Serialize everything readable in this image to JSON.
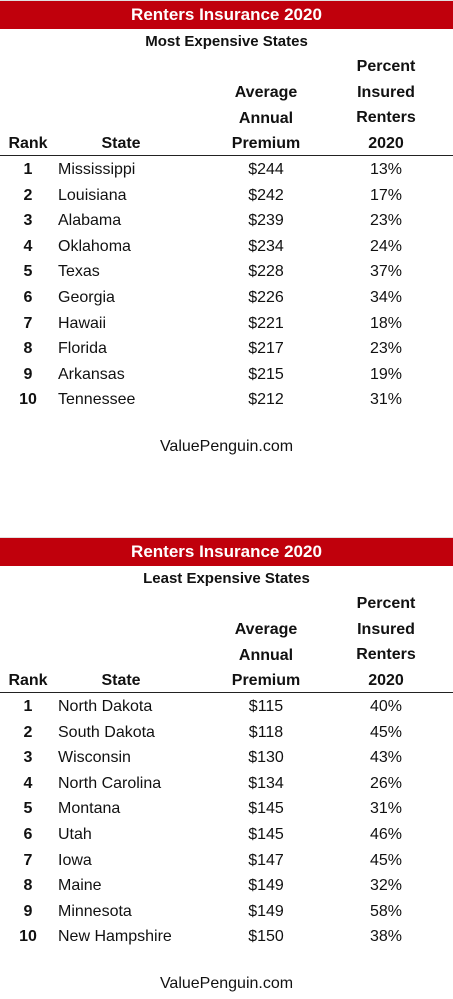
{
  "colors": {
    "banner_bg": "#c0000c",
    "banner_text": "#ffffff"
  },
  "header": {
    "rank": "Rank",
    "state": "State",
    "premium": [
      "Average",
      "Annual",
      "Premium"
    ],
    "percent": [
      "Percent",
      "Insured",
      "Renters",
      "2020"
    ]
  },
  "tables": [
    {
      "title": "Renters Insurance 2020",
      "subtitle": "Most Expensive States",
      "rows": [
        {
          "rank": "1",
          "state": "Mississippi",
          "premium": "$244",
          "percent": "13%"
        },
        {
          "rank": "2",
          "state": "Louisiana",
          "premium": "$242",
          "percent": "17%"
        },
        {
          "rank": "3",
          "state": "Alabama",
          "premium": "$239",
          "percent": "23%"
        },
        {
          "rank": "4",
          "state": "Oklahoma",
          "premium": "$234",
          "percent": "24%"
        },
        {
          "rank": "5",
          "state": "Texas",
          "premium": "$228",
          "percent": "37%"
        },
        {
          "rank": "6",
          "state": "Georgia",
          "premium": "$226",
          "percent": "34%"
        },
        {
          "rank": "7",
          "state": "Hawaii",
          "premium": "$221",
          "percent": "18%"
        },
        {
          "rank": "8",
          "state": "Florida",
          "premium": "$217",
          "percent": "23%"
        },
        {
          "rank": "9",
          "state": "Arkansas",
          "premium": "$215",
          "percent": "19%"
        },
        {
          "rank": "10",
          "state": "Tennessee",
          "premium": "$212",
          "percent": "31%"
        }
      ],
      "source": "ValuePenguin.com"
    },
    {
      "title": "Renters Insurance 2020",
      "subtitle": "Least Expensive States",
      "rows": [
        {
          "rank": "1",
          "state": "North Dakota",
          "premium": "$115",
          "percent": "40%"
        },
        {
          "rank": "2",
          "state": "South Dakota",
          "premium": "$118",
          "percent": "45%"
        },
        {
          "rank": "3",
          "state": "Wisconsin",
          "premium": "$130",
          "percent": "43%"
        },
        {
          "rank": "4",
          "state": "North Carolina",
          "premium": "$134",
          "percent": "26%"
        },
        {
          "rank": "5",
          "state": "Montana",
          "premium": "$145",
          "percent": "31%"
        },
        {
          "rank": "6",
          "state": "Utah",
          "premium": "$145",
          "percent": "46%"
        },
        {
          "rank": "7",
          "state": "Iowa",
          "premium": "$147",
          "percent": "45%"
        },
        {
          "rank": "8",
          "state": "Maine",
          "premium": "$149",
          "percent": "32%"
        },
        {
          "rank": "9",
          "state": "Minnesota",
          "premium": "$149",
          "percent": "58%"
        },
        {
          "rank": "10",
          "state": "New Hampshire",
          "premium": "$150",
          "percent": "38%"
        }
      ],
      "source": "ValuePenguin.com"
    }
  ]
}
